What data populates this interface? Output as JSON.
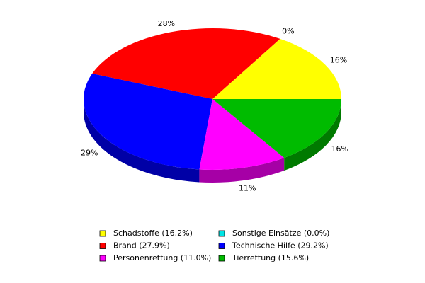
{
  "chart_data": {
    "type": "pie",
    "categories": [
      "Schadstoffe (16.2%)",
      "Sonstige Einsätze (0.0%)",
      "Brand (27.9%)",
      "Technische Hilfe (29.2%)",
      "Personenrettung (11.0%)",
      "Tierrettung (15.6%)"
    ],
    "values": [
      16.2,
      0.0,
      27.9,
      29.2,
      11.0,
      15.6
    ],
    "value_labels": [
      "16%",
      "0%",
      "28%",
      "29%",
      "11%",
      "16%"
    ],
    "colors": [
      "#ffff00",
      "#00e5e5",
      "#ff0000",
      "#0000ff",
      "#ff00ff",
      "#00bb00"
    ]
  }
}
